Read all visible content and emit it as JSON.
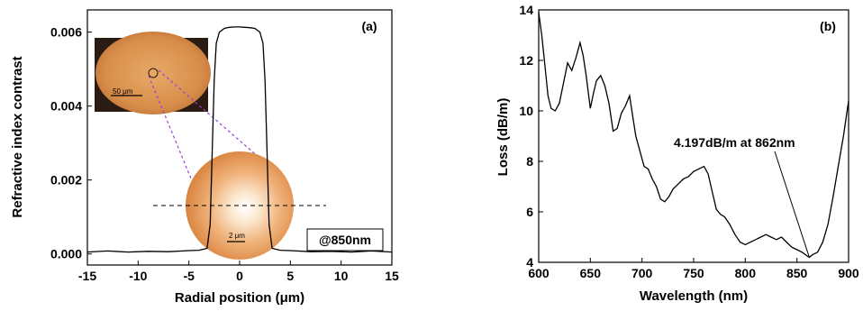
{
  "chart_data": [
    {
      "type": "line",
      "panel_label": "(a)",
      "xlabel": "Radial position (μm)",
      "ylabel": "Refractive index contrast",
      "xlim": [
        -15,
        15
      ],
      "ylim": [
        -0.0003,
        0.0066
      ],
      "xticks": [
        -15,
        -10,
        -5,
        0,
        5,
        10,
        15
      ],
      "yticks": [
        "0.000",
        "0.002",
        "0.004",
        "0.006"
      ],
      "grid": false,
      "series": [
        {
          "x": [
            -15,
            -13,
            -11,
            -9,
            -7,
            -5,
            -4,
            -3.2,
            -2.9,
            -2.7,
            -2.5,
            -2.3,
            -2.0,
            -1.5,
            -1.0,
            -0.5,
            0,
            0.5,
            1.0,
            1.5,
            2.0,
            2.3,
            2.5,
            2.7,
            2.9,
            3.2,
            4,
            5,
            7,
            9,
            11,
            13,
            15
          ],
          "y": [
            5e-05,
            8e-05,
            5e-05,
            7e-05,
            6e-05,
            9e-05,
            0.0001,
            0.00015,
            0.0008,
            0.0028,
            0.0047,
            0.0057,
            0.006,
            0.0061,
            0.00613,
            0.00614,
            0.00614,
            0.00613,
            0.00612,
            0.0061,
            0.006,
            0.0057,
            0.0047,
            0.0028,
            0.0008,
            0.00015,
            0.0001,
            9e-05,
            6e-05,
            7e-05,
            5e-05,
            8e-05,
            5e-05
          ]
        }
      ],
      "annotations": {
        "wavelength": "@850nm",
        "inset_scalebar_large": "50 μm",
        "inset_scalebar_small": "2 μm"
      }
    },
    {
      "type": "line",
      "panel_label": "(b)",
      "xlabel": "Wavelength (nm)",
      "ylabel": "Loss (dB/m)",
      "xlim": [
        600,
        900
      ],
      "ylim": [
        4,
        14
      ],
      "xticks": [
        600,
        650,
        700,
        750,
        800,
        850,
        900
      ],
      "yticks": [
        4,
        6,
        8,
        10,
        12,
        14
      ],
      "grid": false,
      "series": [
        {
          "x": [
            600,
            603,
            606,
            609,
            612,
            616,
            620,
            624,
            628,
            632,
            636,
            640,
            643,
            646,
            650,
            653,
            656,
            660,
            664,
            668,
            672,
            676,
            680,
            684,
            688,
            691,
            694,
            698,
            702,
            706,
            710,
            714,
            718,
            722,
            726,
            730,
            735,
            740,
            745,
            750,
            755,
            760,
            764,
            768,
            772,
            776,
            780,
            785,
            790,
            795,
            800,
            805,
            810,
            815,
            820,
            825,
            830,
            835,
            840,
            845,
            850,
            855,
            860,
            862,
            865,
            870,
            875,
            880,
            885,
            890,
            895,
            900
          ],
          "y": [
            13.9,
            13.0,
            11.8,
            10.6,
            10.1,
            10.0,
            10.3,
            11.1,
            11.9,
            11.6,
            12.1,
            12.7,
            12.2,
            11.4,
            10.1,
            10.7,
            11.2,
            11.4,
            11.0,
            10.3,
            9.2,
            9.3,
            9.9,
            10.2,
            10.6,
            9.8,
            9.0,
            8.4,
            7.8,
            7.7,
            7.3,
            7.0,
            6.5,
            6.4,
            6.6,
            6.9,
            7.1,
            7.3,
            7.4,
            7.6,
            7.7,
            7.8,
            7.5,
            6.8,
            6.1,
            5.9,
            5.8,
            5.5,
            5.1,
            4.8,
            4.7,
            4.8,
            4.9,
            5.0,
            5.1,
            5.0,
            4.9,
            5.0,
            4.8,
            4.6,
            4.5,
            4.4,
            4.25,
            4.197,
            4.3,
            4.4,
            4.8,
            5.5,
            6.6,
            7.8,
            9.0,
            10.4
          ]
        }
      ],
      "annotations": {
        "min_label": "4.197dB/m at 862nm",
        "min_x": 862,
        "min_y": 4.197
      }
    }
  ]
}
